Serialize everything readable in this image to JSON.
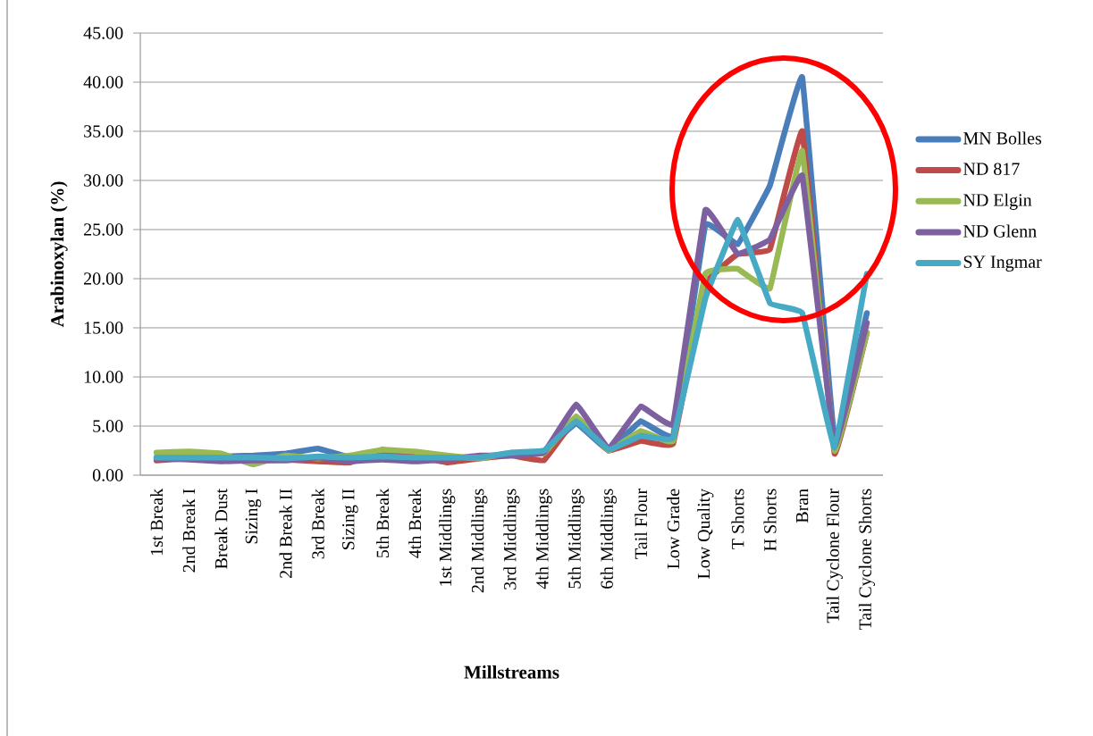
{
  "chart_data": {
    "type": "line",
    "xlabel": "Millstreams",
    "ylabel": "Arabinoxylan (%)",
    "categories": [
      "1st Break",
      "2nd Break I",
      "Break Dust",
      "Sizing I",
      "2nd Break II",
      "3rd Break",
      "Sizing II",
      "5th Break",
      "4th Break",
      "1st Middlings",
      "2nd Middlings",
      "3rd Middlings",
      "4th Middlings",
      "5th Middlings",
      "6th Middlings",
      "Tail Flour",
      "Low Grade",
      "Low Quality",
      "T Shorts",
      "H Shorts",
      "Bran",
      "Tail Cyclone Flour",
      "Tail Cyclone Shorts"
    ],
    "series": [
      {
        "name": "MN Bolles",
        "color": "#4a7ebb",
        "values": [
          1.8,
          1.9,
          1.9,
          2.0,
          2.2,
          2.7,
          1.8,
          2.1,
          1.8,
          1.8,
          1.8,
          2.2,
          2.4,
          5.3,
          2.5,
          5.5,
          4.0,
          25.5,
          23.5,
          29.5,
          40.5,
          3.5,
          16.5
        ]
      },
      {
        "name": "ND 817",
        "color": "#be4b48",
        "values": [
          1.5,
          1.7,
          1.7,
          1.5,
          1.6,
          1.4,
          1.3,
          2.6,
          2.0,
          1.3,
          1.7,
          2.0,
          1.5,
          5.8,
          2.5,
          3.5,
          3.2,
          19.5,
          22.5,
          23.0,
          35.0,
          2.2,
          14.5
        ]
      },
      {
        "name": "ND Elgin",
        "color": "#98b954",
        "values": [
          2.3,
          2.4,
          2.2,
          1.1,
          2.0,
          1.7,
          2.0,
          2.6,
          2.4,
          2.0,
          1.7,
          2.3,
          2.2,
          6.0,
          2.5,
          4.5,
          3.5,
          20.5,
          21.0,
          19.0,
          33.0,
          2.5,
          14.5
        ]
      },
      {
        "name": "ND Glenn",
        "color": "#7d60a0",
        "values": [
          1.7,
          1.6,
          1.4,
          1.5,
          1.5,
          1.8,
          1.4,
          1.6,
          1.4,
          1.6,
          2.0,
          2.0,
          2.3,
          7.2,
          2.7,
          7.0,
          5.2,
          27.0,
          22.5,
          24.0,
          30.5,
          3.0,
          15.5
        ]
      },
      {
        "name": "SY Ingmar",
        "color": "#46aac5",
        "values": [
          1.8,
          1.8,
          1.8,
          1.8,
          1.7,
          1.9,
          1.8,
          1.9,
          1.8,
          1.8,
          1.8,
          2.3,
          2.5,
          5.5,
          2.6,
          4.0,
          3.8,
          18.0,
          26.0,
          17.5,
          16.5,
          2.8,
          20.5
        ]
      }
    ],
    "ylim": [
      0,
      45
    ],
    "yticks": [
      {
        "value": 0,
        "label": "0.00"
      },
      {
        "value": 5,
        "label": "5.00"
      },
      {
        "value": 10,
        "label": "10.00"
      },
      {
        "value": 15,
        "label": "15.00"
      },
      {
        "value": 20,
        "label": "20.00"
      },
      {
        "value": 25,
        "label": "25.00"
      },
      {
        "value": 30,
        "label": "30.00"
      },
      {
        "value": 35,
        "label": "35.00"
      },
      {
        "value": 40,
        "label": "40.00"
      },
      {
        "value": 45,
        "label": "45.00"
      }
    ],
    "grid": "y",
    "legend": "right",
    "marker": "none",
    "line_style": "solid"
  }
}
